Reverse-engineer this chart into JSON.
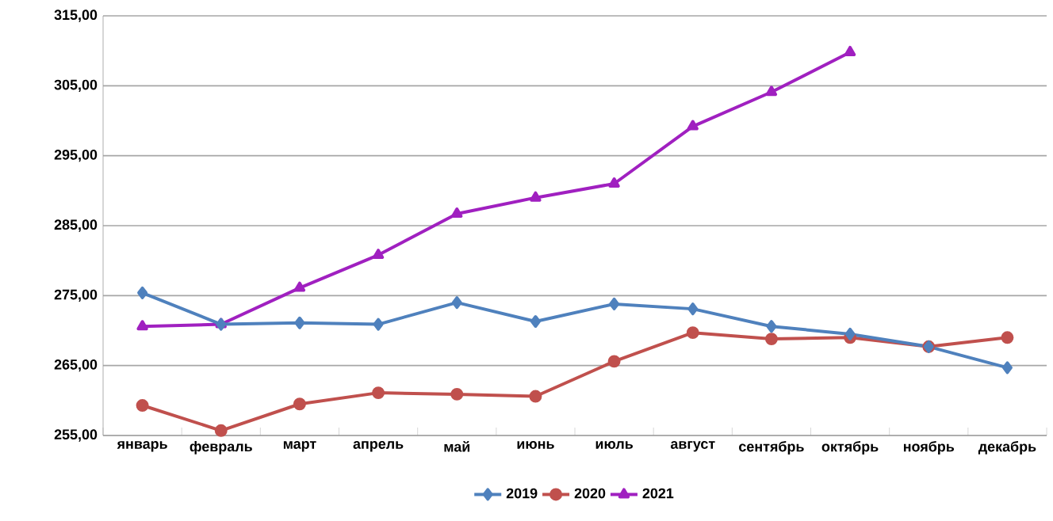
{
  "chart_data": {
    "type": "line",
    "categories": [
      "январь",
      "февраль",
      "март",
      "апрель",
      "май",
      "июнь",
      "июль",
      "август",
      "сентябрь",
      "октябрь",
      "ноябрь",
      "декабрь"
    ],
    "series": [
      {
        "name": "2019",
        "color": "#4f81bd",
        "marker": "diamond",
        "values": [
          275.4,
          270.9,
          271.1,
          270.9,
          274.0,
          271.3,
          273.8,
          273.1,
          270.6,
          269.5,
          267.7,
          264.7
        ]
      },
      {
        "name": "2020",
        "color": "#c0504d",
        "marker": "circle",
        "values": [
          259.3,
          255.7,
          259.5,
          261.1,
          260.9,
          260.6,
          265.6,
          269.7,
          268.8,
          269.0,
          267.7,
          269.0
        ]
      },
      {
        "name": "2021",
        "color": "#a020c0",
        "marker": "triangle",
        "values": [
          270.6,
          270.9,
          276.1,
          280.8,
          286.7,
          289.0,
          291.0,
          299.2,
          304.1,
          309.8,
          null,
          null
        ]
      }
    ],
    "ylim": [
      255,
      315
    ],
    "yticks": [
      {
        "value": 255,
        "label": "255,00"
      },
      {
        "value": 265,
        "label": "265,00"
      },
      {
        "value": 275,
        "label": "275,00"
      },
      {
        "value": 285,
        "label": "285,00"
      },
      {
        "value": 295,
        "label": "295,00"
      },
      {
        "value": 305,
        "label": "305,00"
      },
      {
        "value": 315,
        "label": "315,00"
      }
    ],
    "grid": "y",
    "legend": "bottom"
  }
}
